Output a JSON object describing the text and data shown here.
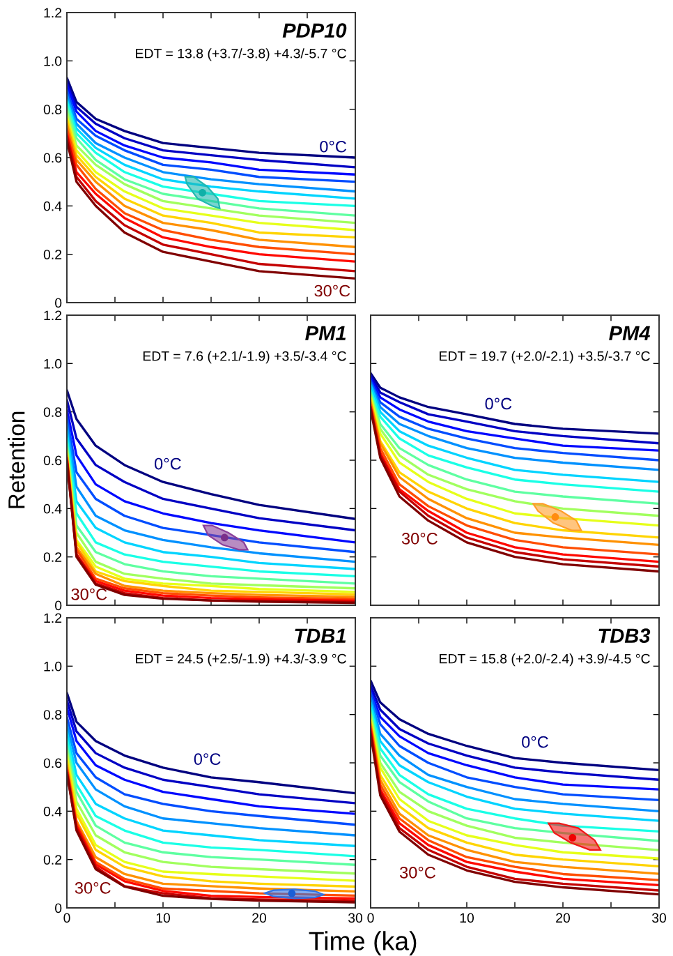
{
  "chart_data": [
    {
      "type": "line",
      "title": "PDP10",
      "subtitle": "EDT = 13.8 (+3.7/-3.8) +4.3/-5.7 °C",
      "annotations": [
        "0°C",
        "30°C"
      ],
      "tick_labels": "y",
      "xlim": [
        0,
        30
      ],
      "ylim": [
        0,
        1.2
      ],
      "xticks": [
        {
          "value": 0,
          "label": null
        },
        {
          "value": 5,
          "label": null
        },
        {
          "value": 10,
          "label": null
        },
        {
          "value": 15,
          "label": null
        },
        {
          "value": 20,
          "label": null
        },
        {
          "value": 25,
          "label": null
        },
        {
          "value": 30,
          "label": null
        }
      ],
      "yticks": [
        0,
        0.2,
        0.4,
        0.6,
        0.8,
        {
          "value": 1.0,
          "label": "1.0"
        },
        1.2
      ],
      "x": [
        0,
        1,
        3,
        6,
        10,
        15,
        20,
        30
      ],
      "series": [
        {
          "color": "#000080",
          "values": [
            0.93,
            0.83,
            0.76,
            0.71,
            0.66,
            0.64,
            0.62,
            0.6
          ]
        },
        {
          "color": "#0000c4",
          "values": [
            0.91,
            0.81,
            0.74,
            0.68,
            0.63,
            0.61,
            0.59,
            0.56
          ]
        },
        {
          "color": "#0009ff",
          "values": [
            0.9,
            0.79,
            0.71,
            0.65,
            0.6,
            0.58,
            0.55,
            0.53
          ]
        },
        {
          "color": "#004dff",
          "values": [
            0.88,
            0.76,
            0.69,
            0.63,
            0.57,
            0.55,
            0.52,
            0.5
          ]
        },
        {
          "color": "#0091ff",
          "values": [
            0.86,
            0.74,
            0.66,
            0.6,
            0.54,
            0.51,
            0.49,
            0.46
          ]
        },
        {
          "color": "#00d4ff",
          "values": [
            0.84,
            0.72,
            0.64,
            0.57,
            0.51,
            0.48,
            0.46,
            0.43
          ]
        },
        {
          "color": "#1affe6",
          "values": [
            0.83,
            0.7,
            0.62,
            0.54,
            0.48,
            0.45,
            0.42,
            0.4
          ]
        },
        {
          "color": "#5effa1",
          "values": [
            0.81,
            0.68,
            0.59,
            0.51,
            0.45,
            0.42,
            0.39,
            0.36
          ]
        },
        {
          "color": "#a1ff5e",
          "values": [
            0.79,
            0.65,
            0.57,
            0.49,
            0.42,
            0.39,
            0.36,
            0.33
          ]
        },
        {
          "color": "#e6ff1a",
          "values": [
            0.77,
            0.63,
            0.54,
            0.46,
            0.39,
            0.36,
            0.33,
            0.3
          ]
        },
        {
          "color": "#ffd400",
          "values": [
            0.76,
            0.61,
            0.52,
            0.43,
            0.36,
            0.33,
            0.29,
            0.27
          ]
        },
        {
          "color": "#ff9100",
          "values": [
            0.74,
            0.59,
            0.5,
            0.4,
            0.33,
            0.3,
            0.26,
            0.23
          ]
        },
        {
          "color": "#ff4d00",
          "values": [
            0.72,
            0.57,
            0.47,
            0.37,
            0.3,
            0.26,
            0.23,
            0.2
          ]
        },
        {
          "color": "#ff0900",
          "values": [
            0.7,
            0.54,
            0.45,
            0.35,
            0.27,
            0.23,
            0.2,
            0.17
          ]
        },
        {
          "color": "#c40000",
          "values": [
            0.69,
            0.52,
            0.42,
            0.32,
            0.24,
            0.2,
            0.16,
            0.13
          ]
        },
        {
          "color": "#800000",
          "values": [
            0.67,
            0.5,
            0.4,
            0.29,
            0.21,
            0.17,
            0.13,
            0.1
          ]
        },
        {
          "type": "area",
          "color": "#20b8b0",
          "x": [
            15.9,
            15.7,
            14.6,
            13.2,
            12.3,
            12.5,
            13.6,
            15.1
          ],
          "values": [
            0.39,
            0.43,
            0.48,
            0.52,
            0.52,
            0.49,
            0.43,
            0.4
          ]
        },
        {
          "type": "scatter",
          "color": "#10b0a8",
          "x": [
            14.1
          ],
          "values": [
            0.455
          ]
        }
      ]
    },
    {
      "type": "line",
      "title": "PM1",
      "subtitle": "EDT = 7.6 (+2.1/-1.9) +3.5/-3.4 °C",
      "ylabel": "Retention",
      "annotations": [
        "0°C",
        "30°C"
      ],
      "tick_labels": "y",
      "xlim": [
        0,
        30
      ],
      "ylim": [
        0,
        1.2
      ],
      "xticks": [
        {
          "value": 0,
          "label": null
        },
        {
          "value": 5,
          "label": null
        },
        {
          "value": 10,
          "label": null
        },
        {
          "value": 15,
          "label": null
        },
        {
          "value": 20,
          "label": null
        },
        {
          "value": 25,
          "label": null
        },
        {
          "value": 30,
          "label": null
        }
      ],
      "yticks": [
        0,
        0.2,
        0.4,
        0.6,
        0.8,
        {
          "value": 1.0,
          "label": "1.0"
        },
        1.2
      ],
      "x": [
        0,
        1,
        3,
        6,
        10,
        15,
        20,
        30
      ],
      "series": [
        {
          "color": "#000080",
          "values": [
            0.89,
            0.77,
            0.66,
            0.58,
            0.51,
            0.46,
            0.415,
            0.357
          ]
        },
        {
          "color": "#0000c4",
          "values": [
            0.85,
            0.69,
            0.58,
            0.51,
            0.44,
            0.4,
            0.36,
            0.31
          ]
        },
        {
          "color": "#0009ff",
          "values": [
            0.81,
            0.62,
            0.5,
            0.43,
            0.38,
            0.34,
            0.31,
            0.26
          ]
        },
        {
          "color": "#004dff",
          "values": [
            0.78,
            0.55,
            0.44,
            0.37,
            0.32,
            0.29,
            0.26,
            0.22
          ]
        },
        {
          "color": "#0091ff",
          "values": [
            0.75,
            0.49,
            0.37,
            0.31,
            0.27,
            0.24,
            0.215,
            0.18
          ]
        },
        {
          "color": "#00d4ff",
          "values": [
            0.72,
            0.43,
            0.32,
            0.26,
            0.22,
            0.2,
            0.175,
            0.15
          ]
        },
        {
          "color": "#1affe6",
          "values": [
            0.69,
            0.38,
            0.26,
            0.21,
            0.18,
            0.16,
            0.14,
            0.12
          ]
        },
        {
          "color": "#5effa1",
          "values": [
            0.67,
            0.33,
            0.22,
            0.17,
            0.14,
            0.12,
            0.11,
            0.09
          ]
        },
        {
          "color": "#a1ff5e",
          "values": [
            0.65,
            0.3,
            0.18,
            0.13,
            0.11,
            0.09,
            0.083,
            0.07
          ]
        },
        {
          "color": "#e6ff1a",
          "values": [
            0.64,
            0.27,
            0.16,
            0.11,
            0.09,
            0.08,
            0.067,
            0.055
          ]
        },
        {
          "color": "#ffd400",
          "values": [
            0.63,
            0.26,
            0.14,
            0.1,
            0.08,
            0.06,
            0.055,
            0.045
          ]
        },
        {
          "color": "#ff9100",
          "values": [
            0.62,
            0.24,
            0.13,
            0.08,
            0.06,
            0.05,
            0.043,
            0.035
          ]
        },
        {
          "color": "#ff4d00",
          "values": [
            0.61,
            0.23,
            0.11,
            0.07,
            0.05,
            0.04,
            0.033,
            0.026
          ]
        },
        {
          "color": "#ff0900",
          "values": [
            0.61,
            0.21,
            0.1,
            0.06,
            0.04,
            0.03,
            0.025,
            0.019
          ]
        },
        {
          "color": "#c40000",
          "values": [
            0.6,
            0.21,
            0.09,
            0.05,
            0.03,
            0.02,
            0.019,
            0.014
          ]
        },
        {
          "color": "#800000",
          "values": [
            0.6,
            0.2,
            0.085,
            0.043,
            0.027,
            0.02,
            0.015,
            0.01
          ]
        },
        {
          "type": "area",
          "color": "#8a3f9a",
          "x": [
            18.8,
            18.4,
            16.8,
            15.1,
            14.2,
            14.7,
            16.2,
            17.9
          ],
          "values": [
            0.23,
            0.26,
            0.3,
            0.33,
            0.33,
            0.29,
            0.25,
            0.23
          ]
        },
        {
          "type": "scatter",
          "color": "#7a2f8a",
          "x": [
            16.4
          ],
          "values": [
            0.28
          ]
        }
      ]
    },
    {
      "type": "line",
      "title": "PM4",
      "subtitle": "EDT = 19.7 (+2.0/-2.1) +3.5/-3.7 °C",
      "annotations": [
        "0°C",
        "30°C"
      ],
      "tick_labels": false,
      "xlim": [
        0,
        30
      ],
      "ylim": [
        0,
        1.2
      ],
      "xticks": [
        {
          "value": 0,
          "label": null
        },
        {
          "value": 5,
          "label": null
        },
        {
          "value": 10,
          "label": null
        },
        {
          "value": 15,
          "label": null
        },
        {
          "value": 20,
          "label": null
        },
        {
          "value": 25,
          "label": null
        },
        {
          "value": 30,
          "label": null
        }
      ],
      "yticks": [
        {
          "value": 0,
          "label": null
        },
        {
          "value": 0.2,
          "label": null
        },
        {
          "value": 0.4,
          "label": null
        },
        {
          "value": 0.6,
          "label": null
        },
        {
          "value": 0.8,
          "label": null
        },
        {
          "value": 1.0,
          "label": null
        },
        {
          "value": 1.2,
          "label": null
        }
      ],
      "x": [
        0,
        1,
        3,
        6,
        10,
        15,
        20,
        30
      ],
      "series": [
        {
          "color": "#000080",
          "values": [
            0.96,
            0.9,
            0.86,
            0.82,
            0.79,
            0.75,
            0.73,
            0.71
          ]
        },
        {
          "color": "#0000c4",
          "values": [
            0.95,
            0.88,
            0.84,
            0.79,
            0.76,
            0.72,
            0.7,
            0.67
          ]
        },
        {
          "color": "#0009ff",
          "values": [
            0.94,
            0.86,
            0.81,
            0.76,
            0.72,
            0.69,
            0.66,
            0.64
          ]
        },
        {
          "color": "#004dff",
          "values": [
            0.93,
            0.84,
            0.78,
            0.73,
            0.69,
            0.65,
            0.63,
            0.6
          ]
        },
        {
          "color": "#0091ff",
          "values": [
            0.92,
            0.82,
            0.75,
            0.7,
            0.65,
            0.61,
            0.59,
            0.56
          ]
        },
        {
          "color": "#00d4ff",
          "values": [
            0.91,
            0.8,
            0.72,
            0.66,
            0.61,
            0.56,
            0.54,
            0.51
          ]
        },
        {
          "color": "#1affe6",
          "values": [
            0.89,
            0.78,
            0.69,
            0.62,
            0.57,
            0.52,
            0.5,
            0.47
          ]
        },
        {
          "color": "#5effa1",
          "values": [
            0.88,
            0.75,
            0.65,
            0.58,
            0.52,
            0.47,
            0.45,
            0.42
          ]
        },
        {
          "color": "#a1ff5e",
          "values": [
            0.87,
            0.73,
            0.62,
            0.54,
            0.48,
            0.43,
            0.4,
            0.37
          ]
        },
        {
          "color": "#e6ff1a",
          "values": [
            0.86,
            0.71,
            0.59,
            0.51,
            0.44,
            0.38,
            0.36,
            0.33
          ]
        },
        {
          "color": "#ffd400",
          "values": [
            0.85,
            0.68,
            0.55,
            0.47,
            0.4,
            0.34,
            0.31,
            0.28
          ]
        },
        {
          "color": "#ff9100",
          "values": [
            0.84,
            0.67,
            0.53,
            0.44,
            0.36,
            0.3,
            0.28,
            0.25
          ]
        },
        {
          "color": "#ff4d00",
          "values": [
            0.83,
            0.65,
            0.5,
            0.41,
            0.33,
            0.27,
            0.24,
            0.21
          ]
        },
        {
          "color": "#ff0900",
          "values": [
            0.82,
            0.63,
            0.48,
            0.39,
            0.3,
            0.24,
            0.21,
            0.18
          ]
        },
        {
          "color": "#c40000",
          "values": [
            0.82,
            0.62,
            0.47,
            0.37,
            0.28,
            0.22,
            0.19,
            0.16
          ]
        },
        {
          "color": "#800000",
          "values": [
            0.81,
            0.61,
            0.45,
            0.35,
            0.26,
            0.2,
            0.17,
            0.14
          ]
        },
        {
          "type": "area",
          "color": "#ff9e2a",
          "x": [
            21.9,
            21.4,
            19.8,
            17.9,
            16.9,
            17.4,
            19.0,
            20.9
          ],
          "values": [
            0.31,
            0.35,
            0.39,
            0.42,
            0.42,
            0.39,
            0.34,
            0.31
          ]
        },
        {
          "type": "scatter",
          "color": "#ff8c10",
          "x": [
            19.2
          ],
          "values": [
            0.365
          ]
        }
      ]
    },
    {
      "type": "line",
      "title": "TDB1",
      "subtitle": "EDT = 24.5 (+2.5/-1.9) +4.3/-3.9 °C",
      "xlabel": "Time (ka)",
      "annotations": [
        "0°C",
        "30°C"
      ],
      "xlim": [
        0,
        30
      ],
      "ylim": [
        0,
        1.2
      ],
      "xticks": [
        0,
        {
          "value": 5,
          "label": null
        },
        10,
        {
          "value": 15,
          "label": null
        },
        20,
        {
          "value": 25,
          "label": null
        },
        30
      ],
      "yticks": [
        0,
        0.2,
        0.4,
        0.6,
        0.8,
        {
          "value": 1.0,
          "label": "1.0"
        },
        1.2
      ],
      "x": [
        0,
        1,
        3,
        6,
        10,
        15,
        20,
        30
      ],
      "series": [
        {
          "color": "#000080",
          "values": [
            0.89,
            0.77,
            0.69,
            0.63,
            0.58,
            0.54,
            0.52,
            0.474
          ]
        },
        {
          "color": "#0000c4",
          "values": [
            0.86,
            0.73,
            0.64,
            0.58,
            0.53,
            0.5,
            0.47,
            0.433
          ]
        },
        {
          "color": "#0009ff",
          "values": [
            0.83,
            0.69,
            0.59,
            0.53,
            0.48,
            0.45,
            0.42,
            0.389
          ]
        },
        {
          "color": "#004dff",
          "values": [
            0.79,
            0.64,
            0.54,
            0.47,
            0.43,
            0.4,
            0.38,
            0.344
          ]
        },
        {
          "color": "#0091ff",
          "values": [
            0.76,
            0.6,
            0.49,
            0.42,
            0.37,
            0.35,
            0.33,
            0.3
          ]
        },
        {
          "color": "#00d4ff",
          "values": [
            0.73,
            0.55,
            0.43,
            0.37,
            0.32,
            0.3,
            0.28,
            0.256
          ]
        },
        {
          "color": "#1affe6",
          "values": [
            0.7,
            0.51,
            0.38,
            0.32,
            0.27,
            0.25,
            0.24,
            0.214
          ]
        },
        {
          "color": "#5effa1",
          "values": [
            0.67,
            0.48,
            0.34,
            0.27,
            0.23,
            0.21,
            0.2,
            0.178
          ]
        },
        {
          "color": "#a1ff5e",
          "values": [
            0.65,
            0.44,
            0.3,
            0.23,
            0.19,
            0.17,
            0.16,
            0.142
          ]
        },
        {
          "color": "#e6ff1a",
          "values": [
            0.63,
            0.41,
            0.26,
            0.19,
            0.15,
            0.14,
            0.13,
            0.112
          ]
        },
        {
          "color": "#ffd400",
          "values": [
            0.61,
            0.39,
            0.24,
            0.17,
            0.13,
            0.11,
            0.1,
            0.088
          ]
        },
        {
          "color": "#ff9100",
          "values": [
            0.59,
            0.36,
            0.21,
            0.14,
            0.1,
            0.09,
            0.08,
            0.068
          ]
        },
        {
          "color": "#ff4d00",
          "values": [
            0.58,
            0.35,
            0.19,
            0.12,
            0.08,
            0.07,
            0.06,
            0.051
          ]
        },
        {
          "color": "#ff0900",
          "values": [
            0.57,
            0.34,
            0.18,
            0.11,
            0.07,
            0.05,
            0.045,
            0.039
          ]
        },
        {
          "color": "#c40000",
          "values": [
            0.56,
            0.33,
            0.17,
            0.09,
            0.06,
            0.04,
            0.035,
            0.029
          ]
        },
        {
          "color": "#800000",
          "values": [
            0.56,
            0.32,
            0.16,
            0.088,
            0.05,
            0.037,
            0.03,
            0.023
          ]
        },
        {
          "type": "area",
          "color": "#2f74e8",
          "x": [
            26.7,
            25.8,
            23.7,
            21.5,
            20.6,
            21.5,
            23.7,
            25.8
          ],
          "values": [
            0.055,
            0.069,
            0.077,
            0.073,
            0.061,
            0.047,
            0.039,
            0.043
          ]
        },
        {
          "type": "scatter",
          "color": "#1a5fd8",
          "x": [
            23.4
          ],
          "values": [
            0.06
          ]
        }
      ]
    },
    {
      "type": "line",
      "title": "TDB3",
      "subtitle": "EDT = 15.8 (+2.0/-2.4) +3.9/-4.5 °C",
      "annotations": [
        "0°C",
        "30°C"
      ],
      "tick_labels": "x",
      "xlim": [
        0,
        30
      ],
      "ylim": [
        0,
        1.2
      ],
      "xticks": [
        0,
        {
          "value": 5,
          "label": null
        },
        10,
        {
          "value": 15,
          "label": null
        },
        20,
        {
          "value": 25,
          "label": null
        },
        30
      ],
      "yticks": [
        {
          "value": 0,
          "label": null
        },
        {
          "value": 0.2,
          "label": null
        },
        {
          "value": 0.4,
          "label": null
        },
        {
          "value": 0.6,
          "label": null
        },
        {
          "value": 0.8,
          "label": null
        },
        {
          "value": 1.0,
          "label": null
        },
        {
          "value": 1.2,
          "label": null
        }
      ],
      "x": [
        0,
        1,
        3,
        6,
        10,
        15,
        20,
        30
      ],
      "series": [
        {
          "color": "#000080",
          "values": [
            0.94,
            0.85,
            0.78,
            0.72,
            0.67,
            0.62,
            0.6,
            0.57
          ]
        },
        {
          "color": "#0000c4",
          "values": [
            0.92,
            0.82,
            0.74,
            0.68,
            0.63,
            0.58,
            0.56,
            0.53
          ]
        },
        {
          "color": "#0009ff",
          "values": [
            0.9,
            0.79,
            0.71,
            0.64,
            0.59,
            0.54,
            0.51,
            0.49
          ]
        },
        {
          "color": "#004dff",
          "values": [
            0.89,
            0.76,
            0.67,
            0.6,
            0.54,
            0.5,
            0.47,
            0.446
          ]
        },
        {
          "color": "#0091ff",
          "values": [
            0.87,
            0.72,
            0.63,
            0.55,
            0.5,
            0.45,
            0.43,
            0.4
          ]
        },
        {
          "color": "#00d4ff",
          "values": [
            0.85,
            0.69,
            0.59,
            0.52,
            0.46,
            0.41,
            0.39,
            0.36
          ]
        },
        {
          "color": "#1affe6",
          "values": [
            0.83,
            0.66,
            0.55,
            0.47,
            0.41,
            0.37,
            0.34,
            0.316
          ]
        },
        {
          "color": "#5effa1",
          "values": [
            0.81,
            0.63,
            0.52,
            0.44,
            0.37,
            0.33,
            0.31,
            0.277
          ]
        },
        {
          "color": "#a1ff5e",
          "values": [
            0.8,
            0.6,
            0.48,
            0.4,
            0.34,
            0.29,
            0.27,
            0.239
          ]
        },
        {
          "color": "#e6ff1a",
          "values": [
            0.78,
            0.58,
            0.45,
            0.36,
            0.3,
            0.26,
            0.23,
            0.204
          ]
        },
        {
          "color": "#ffd400",
          "values": [
            0.77,
            0.55,
            0.42,
            0.33,
            0.27,
            0.22,
            0.2,
            0.172
          ]
        },
        {
          "color": "#ff9100",
          "values": [
            0.76,
            0.53,
            0.39,
            0.3,
            0.24,
            0.19,
            0.17,
            0.141
          ]
        },
        {
          "color": "#ff4d00",
          "values": [
            0.75,
            0.51,
            0.37,
            0.28,
            0.21,
            0.17,
            0.14,
            0.115
          ]
        },
        {
          "color": "#ff0900",
          "values": [
            0.74,
            0.49,
            0.35,
            0.26,
            0.19,
            0.15,
            0.12,
            0.094
          ]
        },
        {
          "color": "#c40000",
          "values": [
            0.73,
            0.48,
            0.33,
            0.24,
            0.17,
            0.12,
            0.1,
            0.072
          ]
        },
        {
          "color": "#800000",
          "values": [
            0.72,
            0.465,
            0.315,
            0.22,
            0.155,
            0.108,
            0.085,
            0.056
          ]
        },
        {
          "type": "area",
          "color": "#f01818",
          "x": [
            23.9,
            23.3,
            21.6,
            19.6,
            18.5,
            19.1,
            20.8,
            22.8
          ],
          "values": [
            0.24,
            0.28,
            0.33,
            0.35,
            0.35,
            0.31,
            0.27,
            0.24
          ]
        },
        {
          "type": "scatter",
          "color": "#f00000",
          "x": [
            21.0
          ],
          "values": [
            0.29
          ]
        }
      ]
    }
  ]
}
